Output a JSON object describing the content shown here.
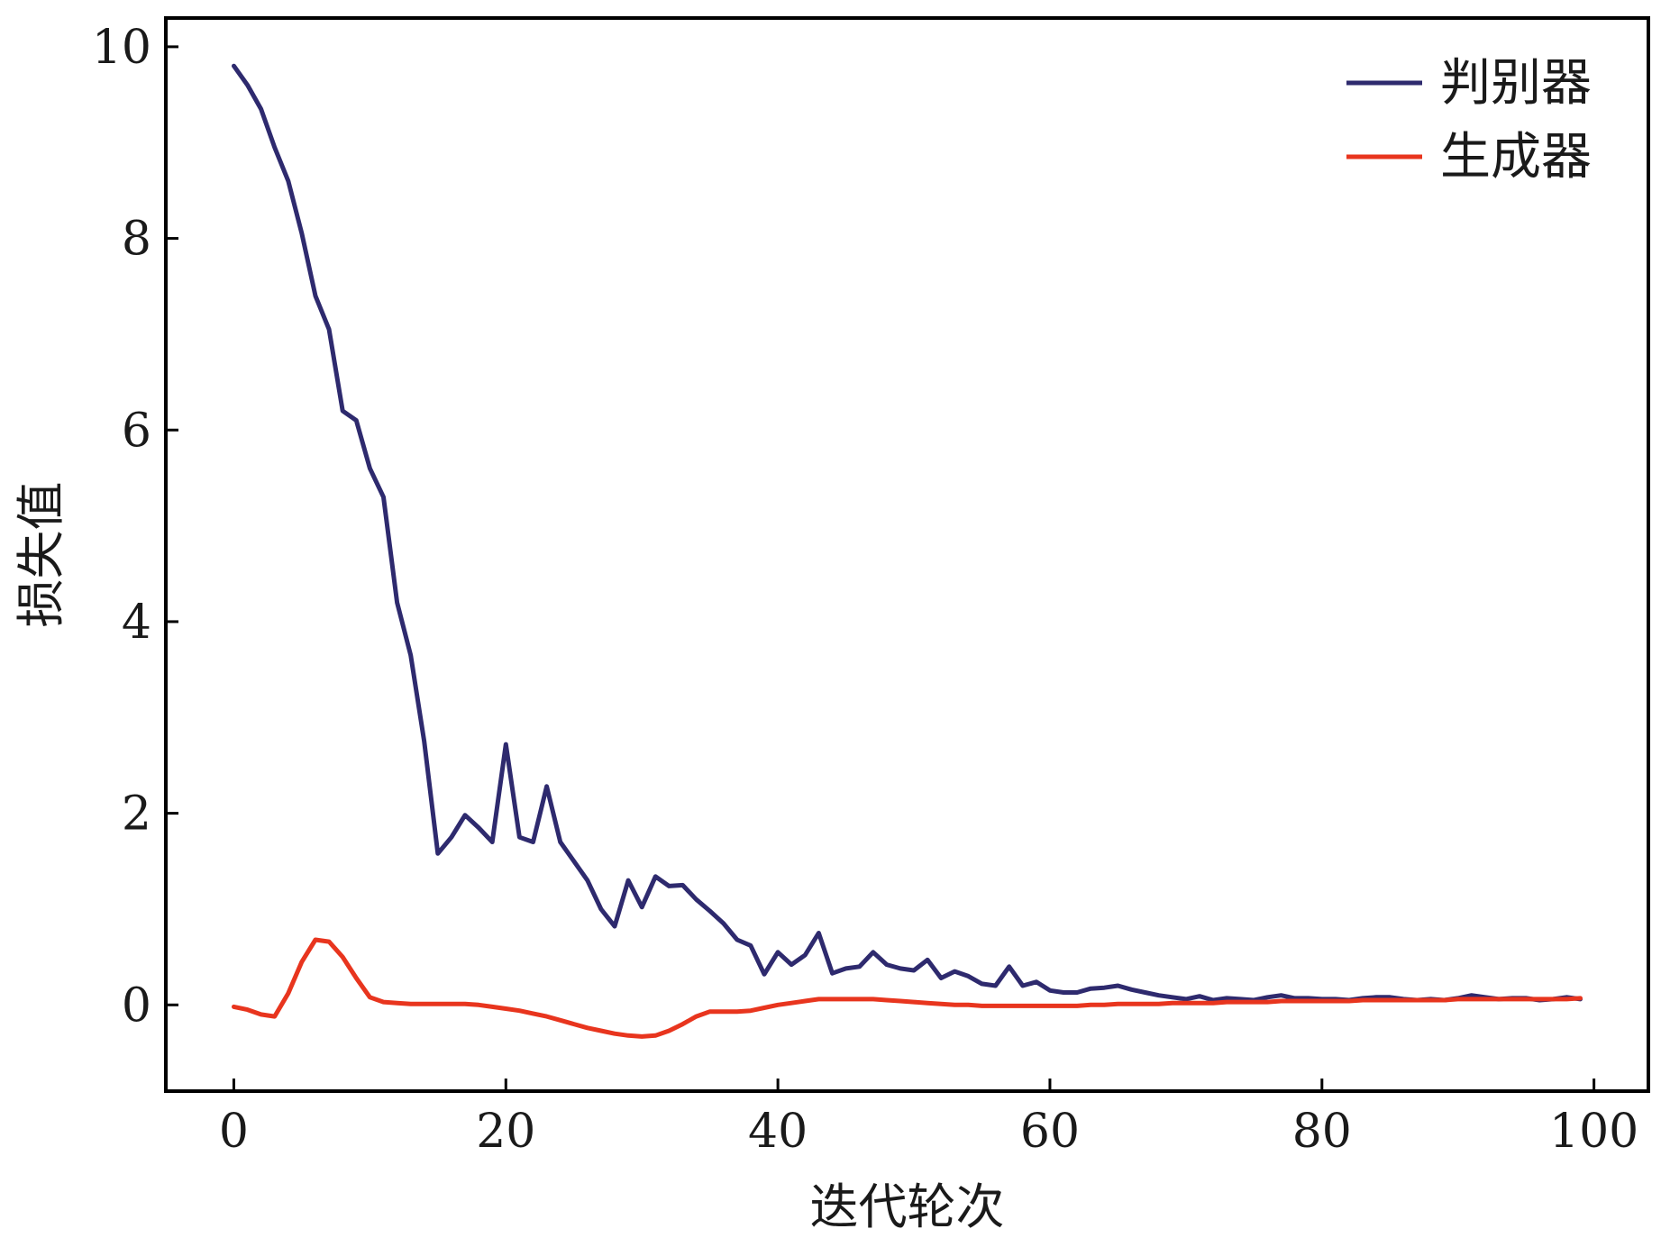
{
  "chart_data": {
    "type": "line",
    "title": "",
    "xlabel": "迭代轮次",
    "ylabel": "损失值",
    "xlim": [
      -5,
      104
    ],
    "ylim": [
      -0.9,
      10.3
    ],
    "xticks": [
      0,
      20,
      40,
      60,
      80,
      100
    ],
    "yticks": [
      0,
      2,
      4,
      6,
      8,
      10
    ],
    "xtick_labels": [
      "0",
      "20",
      "40",
      "60",
      "80",
      "100"
    ],
    "ytick_labels": [
      "0",
      "2",
      "4",
      "6",
      "8",
      "10"
    ],
    "grid": false,
    "legend_position": "top-right",
    "series": [
      {
        "name": "判别器",
        "color": "#2e2a6e",
        "x": [
          0,
          1,
          2,
          3,
          4,
          5,
          6,
          7,
          8,
          9,
          10,
          11,
          12,
          13,
          14,
          15,
          16,
          17,
          18,
          19,
          20,
          21,
          22,
          23,
          24,
          25,
          26,
          27,
          28,
          29,
          30,
          31,
          32,
          33,
          34,
          35,
          36,
          37,
          38,
          39,
          40,
          41,
          42,
          43,
          44,
          45,
          46,
          47,
          48,
          49,
          50,
          51,
          52,
          53,
          54,
          55,
          56,
          57,
          58,
          59,
          60,
          61,
          62,
          63,
          64,
          65,
          66,
          67,
          68,
          69,
          70,
          71,
          72,
          73,
          74,
          75,
          76,
          77,
          78,
          79,
          80,
          81,
          82,
          83,
          84,
          85,
          86,
          87,
          88,
          89,
          90,
          91,
          92,
          93,
          94,
          95,
          96,
          97,
          98,
          99
        ],
        "values": [
          9.8,
          9.6,
          9.35,
          8.95,
          8.6,
          8.05,
          7.4,
          7.05,
          6.2,
          6.1,
          5.6,
          5.3,
          4.2,
          3.65,
          2.75,
          1.58,
          1.75,
          1.98,
          1.85,
          1.7,
          2.72,
          1.75,
          1.7,
          2.28,
          1.7,
          1.5,
          1.3,
          1.0,
          0.82,
          1.3,
          1.02,
          1.34,
          1.24,
          1.25,
          1.1,
          0.98,
          0.85,
          0.68,
          0.62,
          0.32,
          0.55,
          0.42,
          0.52,
          0.75,
          0.33,
          0.38,
          0.4,
          0.55,
          0.42,
          0.38,
          0.36,
          0.47,
          0.28,
          0.35,
          0.3,
          0.22,
          0.2,
          0.4,
          0.2,
          0.24,
          0.15,
          0.13,
          0.13,
          0.17,
          0.18,
          0.2,
          0.16,
          0.13,
          0.1,
          0.08,
          0.06,
          0.09,
          0.05,
          0.07,
          0.06,
          0.05,
          0.08,
          0.1,
          0.07,
          0.07,
          0.06,
          0.06,
          0.05,
          0.07,
          0.08,
          0.08,
          0.06,
          0.05,
          0.06,
          0.05,
          0.07,
          0.1,
          0.08,
          0.06,
          0.07,
          0.07,
          0.05,
          0.06,
          0.08,
          0.06
        ]
      },
      {
        "name": "生成器",
        "color": "#e8351e",
        "x": [
          0,
          1,
          2,
          3,
          4,
          5,
          6,
          7,
          8,
          9,
          10,
          11,
          12,
          13,
          14,
          15,
          16,
          17,
          18,
          19,
          20,
          21,
          22,
          23,
          24,
          25,
          26,
          27,
          28,
          29,
          30,
          31,
          32,
          33,
          34,
          35,
          36,
          37,
          38,
          39,
          40,
          41,
          42,
          43,
          44,
          45,
          46,
          47,
          48,
          49,
          50,
          51,
          52,
          53,
          54,
          55,
          56,
          57,
          58,
          59,
          60,
          61,
          62,
          63,
          64,
          65,
          66,
          67,
          68,
          69,
          70,
          71,
          72,
          73,
          74,
          75,
          76,
          77,
          78,
          79,
          80,
          81,
          82,
          83,
          84,
          85,
          86,
          87,
          88,
          89,
          90,
          91,
          92,
          93,
          94,
          95,
          96,
          97,
          98,
          99
        ],
        "values": [
          -0.02,
          -0.05,
          -0.1,
          -0.12,
          0.12,
          0.45,
          0.68,
          0.66,
          0.5,
          0.28,
          0.08,
          0.03,
          0.02,
          0.01,
          0.01,
          0.01,
          0.01,
          0.01,
          0.0,
          -0.02,
          -0.04,
          -0.06,
          -0.09,
          -0.12,
          -0.16,
          -0.2,
          -0.24,
          -0.27,
          -0.3,
          -0.32,
          -0.33,
          -0.32,
          -0.27,
          -0.2,
          -0.12,
          -0.07,
          -0.07,
          -0.07,
          -0.06,
          -0.03,
          0.0,
          0.02,
          0.04,
          0.06,
          0.06,
          0.06,
          0.06,
          0.06,
          0.05,
          0.04,
          0.03,
          0.02,
          0.01,
          0.0,
          0.0,
          -0.01,
          -0.01,
          -0.01,
          -0.01,
          -0.01,
          -0.01,
          -0.01,
          -0.01,
          0.0,
          0.0,
          0.01,
          0.01,
          0.01,
          0.01,
          0.02,
          0.02,
          0.02,
          0.02,
          0.03,
          0.03,
          0.03,
          0.03,
          0.04,
          0.04,
          0.04,
          0.04,
          0.04,
          0.04,
          0.05,
          0.05,
          0.05,
          0.05,
          0.05,
          0.05,
          0.05,
          0.06,
          0.06,
          0.06,
          0.06,
          0.06,
          0.06,
          0.06,
          0.06,
          0.06,
          0.07
        ]
      }
    ]
  }
}
